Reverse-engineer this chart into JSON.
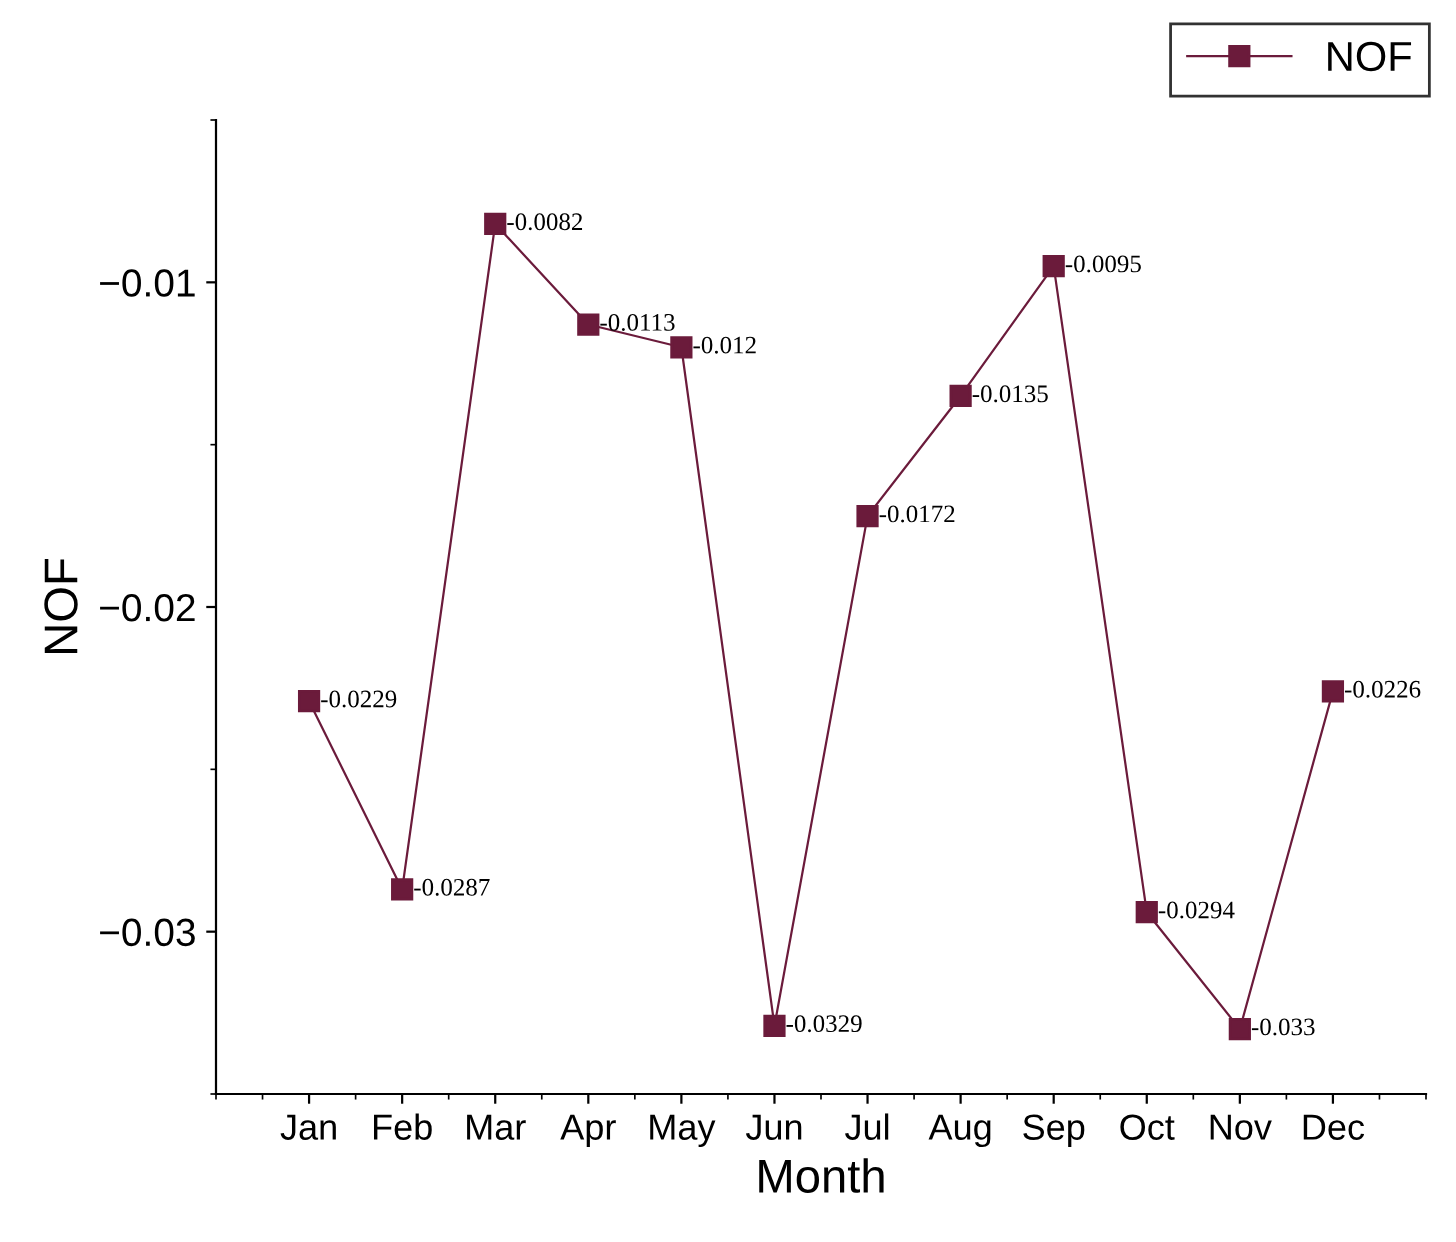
{
  "chart_data": {
    "type": "line",
    "xlabel": "Month",
    "ylabel": "NOF",
    "categories": [
      "Jan",
      "Feb",
      "Mar",
      "Apr",
      "May",
      "Jun",
      "Jul",
      "Aug",
      "Sep",
      "Oct",
      "Nov",
      "Dec"
    ],
    "series": [
      {
        "name": "NOF",
        "color": "#6b1b3b",
        "values": [
          -0.0229,
          -0.0287,
          -0.0082,
          -0.0113,
          -0.012,
          -0.0329,
          -0.0172,
          -0.0135,
          -0.0095,
          -0.0294,
          -0.033,
          -0.0226
        ]
      }
    ],
    "ylim": [
      -0.035,
      -0.005
    ],
    "yticks": [
      {
        "value": -0.01,
        "label": "−0.01"
      },
      {
        "value": -0.02,
        "label": "−0.02"
      },
      {
        "value": -0.03,
        "label": "−0.03"
      }
    ],
    "data_labels": true,
    "marker": "square",
    "line_style": "solid",
    "legend": "top right",
    "grid": false
  }
}
